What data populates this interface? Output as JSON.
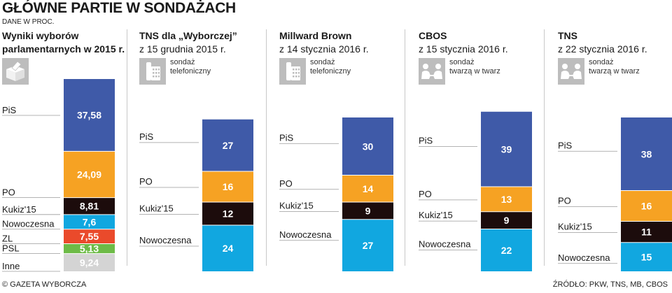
{
  "title": "GŁÓWNE PARTIE W SONDAŻACH",
  "units": "DANE W PROC.",
  "footer": {
    "left": "© GAZETA WYBORCZA",
    "right": "ŹRÓDŁO: PKW, TNS, MB, CBOS"
  },
  "colors": {
    "PiS": "#3f5aa8",
    "PO": "#f6a223",
    "Kukiz'15": "#1c0c0c",
    "Nowoczesna": "#11a7e0",
    "ZL": "#ea4a2b",
    "PSL": "#6dbb47",
    "Inne": "#d4d4d4"
  },
  "panels": [
    {
      "title_lines": [
        "Wyniki wyborów",
        "parlamentarnych w 2015 r."
      ],
      "subtitle": "",
      "icon": "ballot-box-icon",
      "method_lines": []
    },
    {
      "title_lines": [
        "TNS  dla „Wyborczej”"
      ],
      "subtitle": "z 15 grudnia 2015 r.",
      "icon": "phone-icon",
      "method_lines": [
        "sondaż",
        "telefoniczny"
      ]
    },
    {
      "title_lines": [
        "Millward Brown"
      ],
      "subtitle": "z 14 stycznia 2016 r.",
      "icon": "phone-icon",
      "method_lines": [
        "sondaż",
        "telefoniczny"
      ]
    },
    {
      "title_lines": [
        "CBOS"
      ],
      "subtitle": "z 15 stycznia 2016 r.",
      "icon": "face-to-face-icon",
      "method_lines": [
        "sondaż",
        "twarzą w twarz"
      ]
    },
    {
      "title_lines": [
        "TNS"
      ],
      "subtitle": "z 22 stycznia 2016 r.",
      "icon": "face-to-face-icon",
      "method_lines": [
        "sondaż",
        "twarzą w twarz"
      ]
    }
  ],
  "chart_data": [
    {
      "type": "bar",
      "stacked": true,
      "title": "Wyniki wyborów parlamentarnych w 2015 r.",
      "categories": [
        "PiS",
        "PO",
        "Kukiz'15",
        "Nowoczesna",
        "ZL",
        "PSL",
        "Inne"
      ],
      "values": [
        37.58,
        24.09,
        8.81,
        7.6,
        7.55,
        5.13,
        9.24
      ],
      "value_labels": [
        "37,58",
        "24,09",
        "8,81",
        "7,6",
        "7,55",
        "5,13",
        "9,24"
      ]
    },
    {
      "type": "bar",
      "stacked": true,
      "title": "TNS  dla „Wyborczej” z 15 grudnia 2015 r.",
      "categories": [
        "PiS",
        "PO",
        "Kukiz'15",
        "Nowoczesna"
      ],
      "values": [
        27,
        16,
        12,
        24
      ],
      "value_labels": [
        "27",
        "16",
        "12",
        "24"
      ]
    },
    {
      "type": "bar",
      "stacked": true,
      "title": "Millward Brown z 14 stycznia 2016 r.",
      "categories": [
        "PiS",
        "PO",
        "Kukiz'15",
        "Nowoczesna"
      ],
      "values": [
        30,
        14,
        9,
        27
      ],
      "value_labels": [
        "30",
        "14",
        "9",
        "27"
      ]
    },
    {
      "type": "bar",
      "stacked": true,
      "title": "CBOS z 15 stycznia 2016 r.",
      "categories": [
        "PiS",
        "PO",
        "Kukiz'15",
        "Nowoczesna"
      ],
      "values": [
        39,
        13,
        9,
        22
      ],
      "value_labels": [
        "39",
        "13",
        "9",
        "22"
      ]
    },
    {
      "type": "bar",
      "stacked": true,
      "title": "TNS z 22 stycznia 2016 r.",
      "categories": [
        "PiS",
        "PO",
        "Kukiz'15",
        "Nowoczesna"
      ],
      "values": [
        38,
        16,
        11,
        15
      ],
      "value_labels": [
        "38",
        "16",
        "11",
        "15"
      ]
    }
  ]
}
